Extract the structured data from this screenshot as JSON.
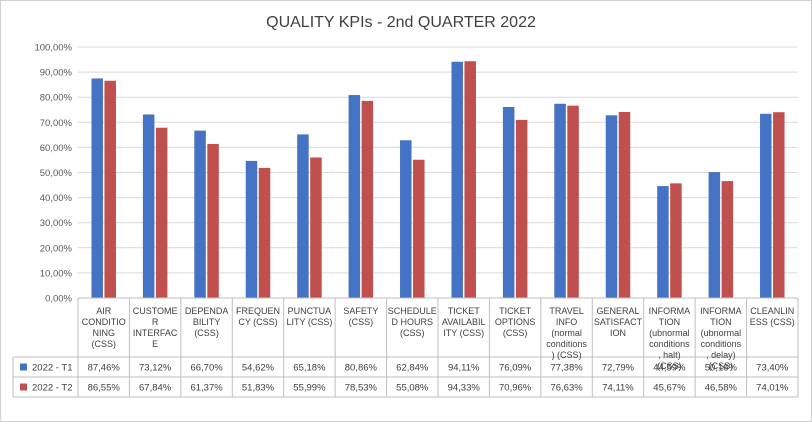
{
  "chart_data": {
    "type": "bar",
    "title": "QUALITY KPIs - 2nd QUARTER 2022",
    "xlabel": "",
    "ylabel": "",
    "ylim": [
      0,
      100
    ],
    "y_ticks": [
      "0,00%",
      "10,00%",
      "20,00%",
      "30,00%",
      "40,00%",
      "50,00%",
      "60,00%",
      "70,00%",
      "80,00%",
      "90,00%",
      "100,00%"
    ],
    "grid": true,
    "legend": "data-table",
    "categories": [
      [
        "AIR",
        "CONDITIO",
        "NING",
        "(CSS)"
      ],
      [
        "CUSTOME",
        "R",
        "INTERFAC",
        "E"
      ],
      [
        "DEPENDA",
        "BILITY",
        "(CSS)"
      ],
      [
        "FREQUEN",
        "CY (CSS)"
      ],
      [
        "PUNCTUA",
        "LITY (CSS)"
      ],
      [
        "SAFETY",
        "(CSS)"
      ],
      [
        "SCHEDULE",
        "D HOURS",
        "(CSS)"
      ],
      [
        "TICKET",
        "AVAILABIL",
        "ITY (CSS)"
      ],
      [
        "TICKET",
        "OPTIONS",
        "(CSS)"
      ],
      [
        "TRAVEL",
        "INFO",
        "(normal",
        "conditions",
        ") (CSS)"
      ],
      [
        "GENERAL",
        "SATISFACT",
        "ION"
      ],
      [
        "INFORMA",
        "TION",
        "(ubnormal",
        "conditions",
        ", halt)",
        "(CSS)"
      ],
      [
        "INFORMA",
        "TION",
        "(ubnormal",
        "conditions",
        ", delay)",
        "(CSS)"
      ],
      [
        "CLEANLIN",
        "ESS (CSS)"
      ]
    ],
    "series": [
      {
        "name": "2022 - T1",
        "color": "#4472C4",
        "values": [
          87.46,
          73.12,
          66.7,
          54.62,
          65.18,
          80.86,
          62.84,
          94.11,
          76.09,
          77.38,
          72.79,
          44.59,
          50.16,
          73.4
        ],
        "labels": [
          "87,46%",
          "73,12%",
          "66,70%",
          "54,62%",
          "65,18%",
          "80,86%",
          "62,84%",
          "94,11%",
          "76,09%",
          "77,38%",
          "72,79%",
          "44,59%",
          "50,16%",
          "73,40%"
        ]
      },
      {
        "name": "2022 - T2",
        "color": "#C0504D",
        "values": [
          86.55,
          67.84,
          61.37,
          51.83,
          55.99,
          78.53,
          55.08,
          94.33,
          70.96,
          76.63,
          74.11,
          45.67,
          46.58,
          74.01
        ],
        "labels": [
          "86,55%",
          "67,84%",
          "61,37%",
          "51,83%",
          "55,99%",
          "78,53%",
          "55,08%",
          "94,33%",
          "70,96%",
          "76,63%",
          "74,11%",
          "45,67%",
          "46,58%",
          "74,01%"
        ]
      }
    ]
  }
}
